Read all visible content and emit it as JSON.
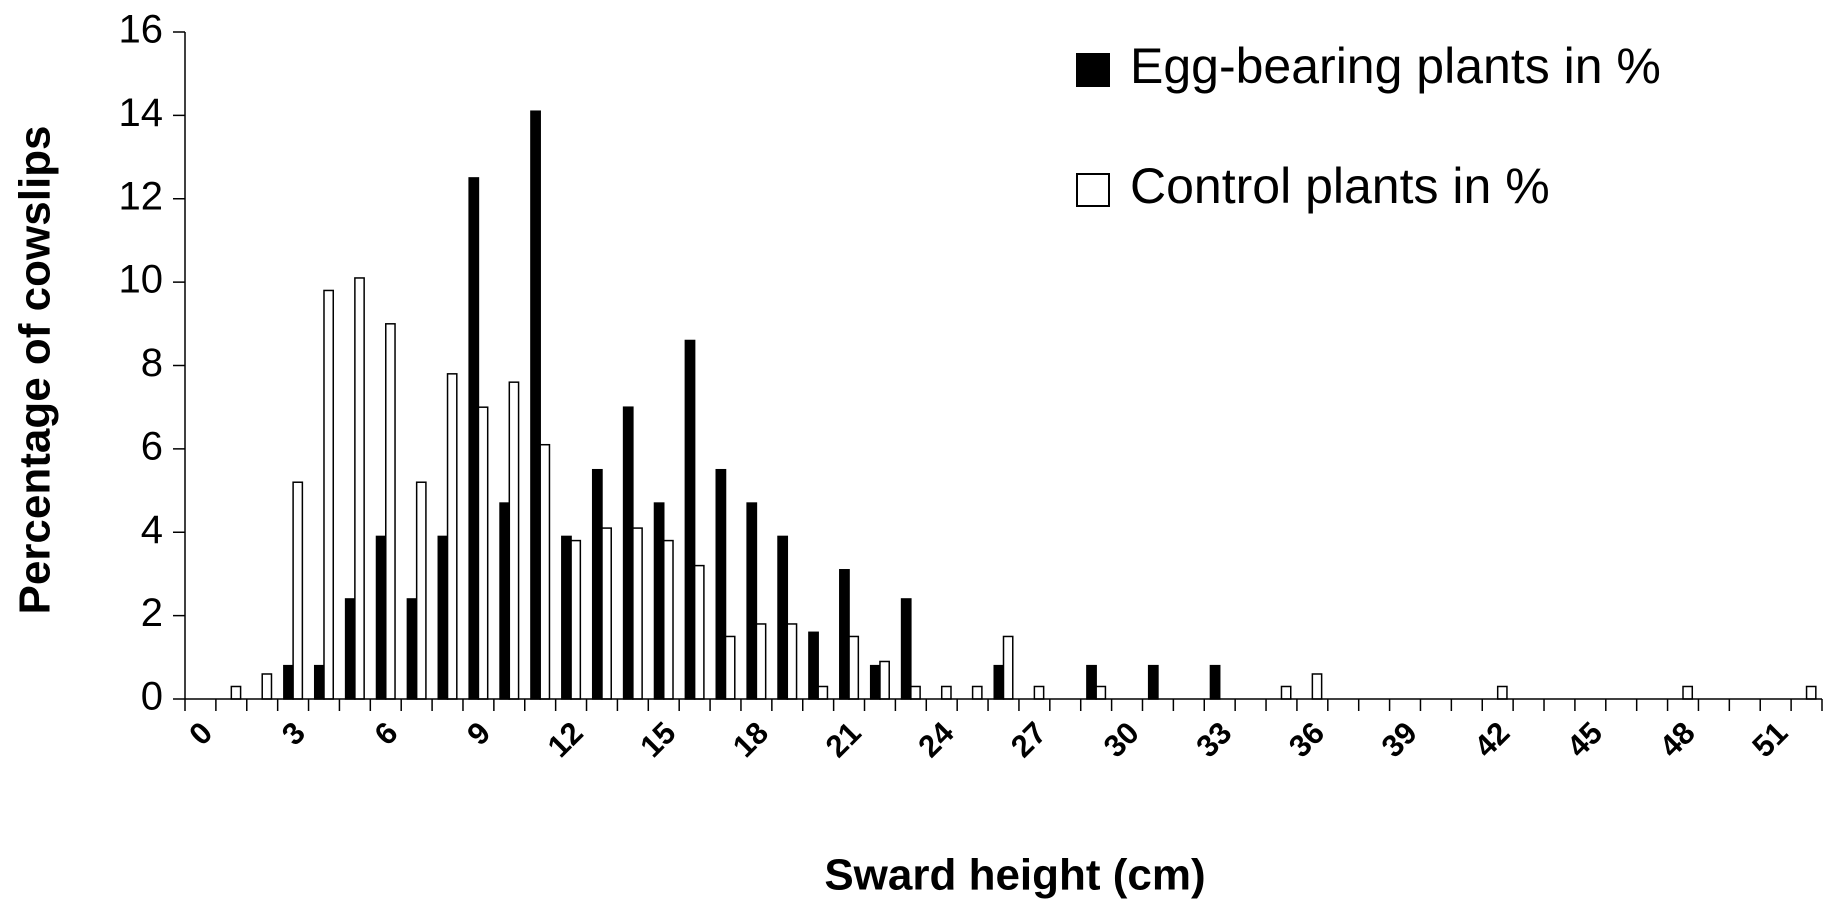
{
  "chart_data": {
    "type": "bar",
    "x_label": "Sward height (cm)",
    "y_label": "Percentage of cowslips",
    "categories": [
      0,
      null,
      null,
      3,
      null,
      null,
      6,
      null,
      null,
      9,
      null,
      null,
      12,
      null,
      null,
      15,
      null,
      null,
      18,
      null,
      null,
      21,
      null,
      null,
      24,
      null,
      null,
      27,
      null,
      null,
      30,
      null,
      null,
      33,
      null,
      null,
      36,
      null,
      null,
      39,
      null,
      null,
      42,
      null,
      null,
      45,
      null,
      null,
      48,
      null,
      null,
      51,
      null
    ],
    "series": [
      {
        "name": "Egg-bearing plants in %",
        "color": "#000000",
        "values": [
          0,
          0,
          0,
          0.8,
          0.8,
          2.4,
          3.9,
          2.4,
          3.9,
          12.5,
          4.7,
          14.1,
          3.9,
          5.5,
          7.0,
          4.7,
          8.6,
          5.5,
          4.7,
          3.9,
          1.6,
          3.1,
          0.8,
          2.4,
          0,
          0,
          0.8,
          0,
          0,
          0.8,
          0,
          0.8,
          0,
          0.8,
          0,
          0,
          0,
          0,
          0,
          0,
          0,
          0,
          0,
          0,
          0,
          0,
          0,
          0,
          0,
          0,
          0,
          0,
          0
        ]
      },
      {
        "name": "Control plants in %",
        "color": "#ffffff",
        "values": [
          0,
          0.3,
          0.6,
          5.2,
          9.8,
          10.1,
          9.0,
          5.2,
          7.8,
          7.0,
          7.6,
          6.1,
          3.8,
          4.1,
          4.1,
          3.8,
          3.2,
          1.5,
          1.8,
          1.8,
          0.3,
          1.5,
          0.9,
          0.3,
          0.3,
          0.3,
          1.5,
          0.3,
          0,
          0.3,
          0,
          0,
          0,
          0,
          0,
          0.3,
          0.6,
          0,
          0,
          0,
          0,
          0,
          0.3,
          0,
          0,
          0,
          0,
          0,
          0.3,
          0,
          0,
          0,
          0.3
        ]
      }
    ],
    "ylim": [
      0,
      16
    ],
    "yticks": [
      0,
      2,
      4,
      6,
      8,
      10,
      12,
      14,
      16
    ],
    "legend": "upper right"
  }
}
